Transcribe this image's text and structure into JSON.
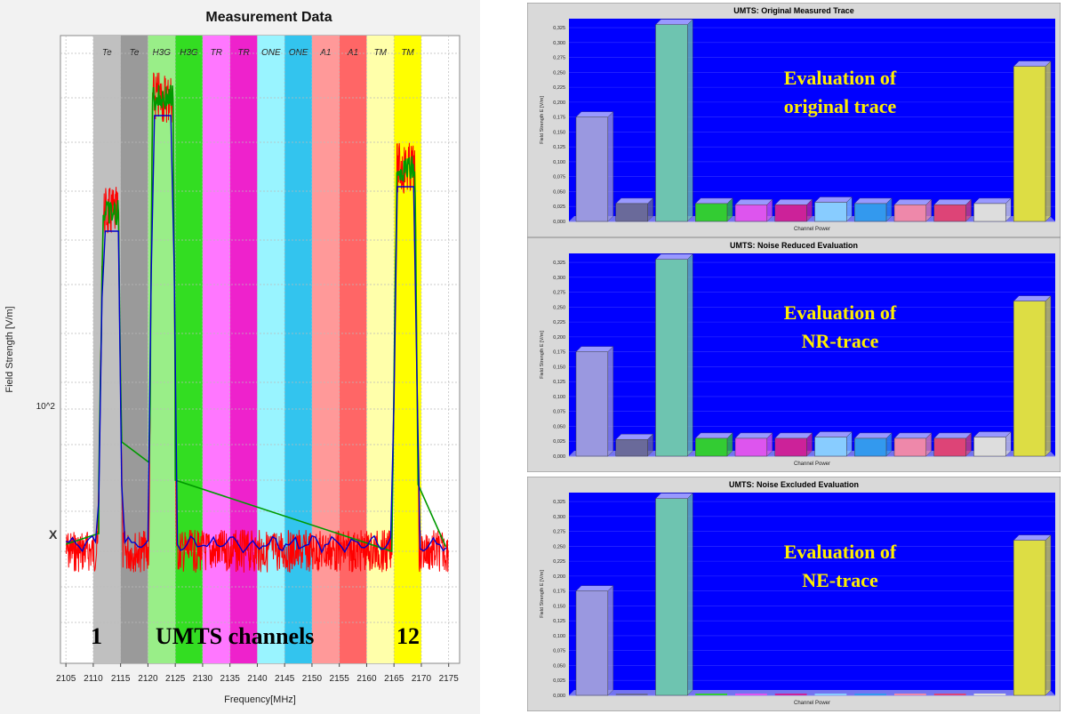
{
  "chart_data": [
    {
      "type": "line",
      "title": "Measurement Data",
      "xlabel": "Frequency[MHz]",
      "ylabel": "Field Strength [V/m]",
      "y_tick_label": "10^2",
      "xlim": [
        2104,
        2177
      ],
      "x_ticks": [
        2105,
        2110,
        2115,
        2120,
        2125,
        2130,
        2135,
        2140,
        2145,
        2150,
        2155,
        2160,
        2165,
        2170,
        2175
      ],
      "grid": true,
      "channel_bands": [
        {
          "label": "Te",
          "from": 2110,
          "to": 2115,
          "color": "#c0c0c0"
        },
        {
          "label": "Te",
          "from": 2115,
          "to": 2120,
          "color": "#9a9a9a"
        },
        {
          "label": "H3G",
          "from": 2120,
          "to": 2125,
          "color": "#99ee88"
        },
        {
          "label": "H3G",
          "from": 2125,
          "to": 2130,
          "color": "#33dd22"
        },
        {
          "label": "TR",
          "from": 2130,
          "to": 2135,
          "color": "#ff77ff"
        },
        {
          "label": "TR",
          "from": 2135,
          "to": 2140,
          "color": "#ee22cc"
        },
        {
          "label": "ONE",
          "from": 2140,
          "to": 2145,
          "color": "#99f4ff"
        },
        {
          "label": "ONE",
          "from": 2145,
          "to": 2150,
          "color": "#33c4ee"
        },
        {
          "label": "A1",
          "from": 2150,
          "to": 2155,
          "color": "#ff9999"
        },
        {
          "label": "A1",
          "from": 2155,
          "to": 2160,
          "color": "#ff6666"
        },
        {
          "label": "TM",
          "from": 2160,
          "to": 2165,
          "color": "#ffffaa"
        },
        {
          "label": "TM",
          "from": 2165,
          "to": 2170,
          "color": "#ffff00"
        }
      ],
      "marker": "X",
      "series": [
        {
          "color": "#ff0000"
        },
        {
          "color": "#0000cc"
        },
        {
          "color": "#009900"
        }
      ],
      "annotations": {
        "left": "1",
        "center": "UMTS channels",
        "right": "12"
      }
    },
    {
      "type": "bar",
      "title": "UMTS: Original Measured Trace",
      "xlabel": "Channel Power",
      "ylabel": "Field Strength E [V/m]",
      "ylim": [
        0,
        0.34
      ],
      "y_ticks": [
        "0,000",
        "0,025",
        "0,050",
        "0,075",
        "0,100",
        "0,125",
        "0,150",
        "0,175",
        "0,200",
        "0,225",
        "0,250",
        "0,275",
        "0,300",
        "0,325"
      ],
      "values": [
        0.175,
        0.03,
        0.33,
        0.03,
        0.028,
        0.028,
        0.032,
        0.03,
        0.028,
        0.028,
        0.03,
        0.26
      ],
      "overlay_text": [
        "Evaluation of",
        "original trace"
      ]
    },
    {
      "type": "bar",
      "title": "UMTS: Noise Reduced Evaluation",
      "xlabel": "Channel Power",
      "ylabel": "Field Strength E [V/m]",
      "ylim": [
        0,
        0.34
      ],
      "y_ticks": [
        "0,000",
        "0,025",
        "0,050",
        "0,075",
        "0,100",
        "0,125",
        "0,150",
        "0,175",
        "0,200",
        "0,225",
        "0,250",
        "0,275",
        "0,300",
        "0,325"
      ],
      "values": [
        0.175,
        0.028,
        0.33,
        0.03,
        0.03,
        0.03,
        0.032,
        0.03,
        0.03,
        0.03,
        0.032,
        0.26
      ],
      "overlay_text": [
        "Evaluation of",
        "NR-trace"
      ]
    },
    {
      "type": "bar",
      "title": "UMTS: Noise Excluded Evaluation",
      "xlabel": "Channel Power",
      "ylabel": "Field Strength E [V/m]",
      "ylim": [
        0,
        0.34
      ],
      "y_ticks": [
        "0,000",
        "0,025",
        "0,050",
        "0,075",
        "0,100",
        "0,125",
        "0,150",
        "0,175",
        "0,200",
        "0,225",
        "0,250",
        "0,275",
        "0,300",
        "0,325"
      ],
      "values": [
        0.175,
        0.0,
        0.33,
        0.0,
        0.0,
        0.0,
        0.0,
        0.0,
        0.0,
        0.0,
        0.0,
        0.26
      ],
      "overlay_text": [
        "Evaluation of",
        "NE-trace"
      ]
    }
  ],
  "bar_colors": [
    "#9a98e0",
    "#6a6a9a",
    "#6ec4b0",
    "#33cc33",
    "#dd55ee",
    "#cc2299",
    "#88ccff",
    "#3399ee",
    "#ee88aa",
    "#dd4477",
    "#dddddd",
    "#dddd44"
  ],
  "colors": {
    "bar_background": "#0000ff",
    "overlay_text": "#ffee00",
    "annotation_text": "#000000"
  }
}
